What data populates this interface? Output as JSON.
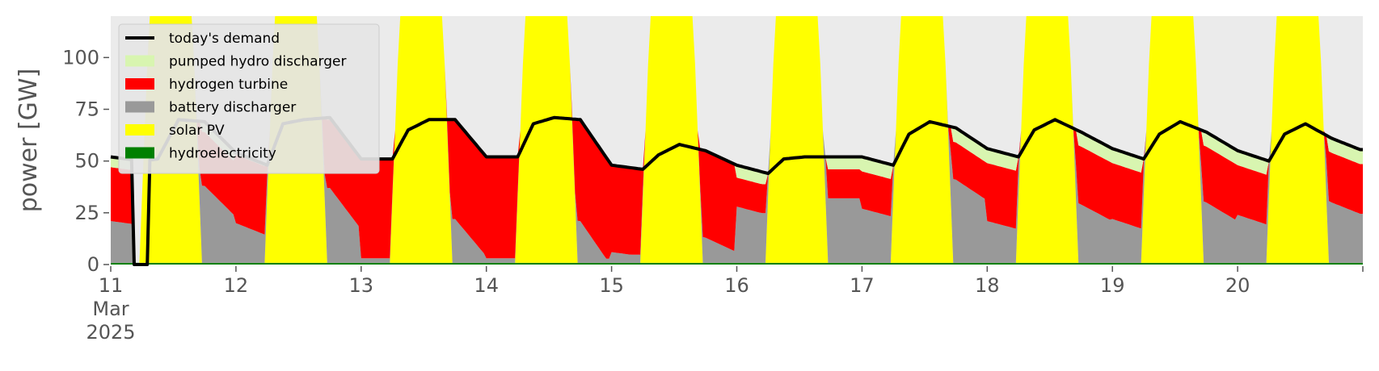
{
  "chart_data": {
    "type": "area",
    "ylabel": "power [GW]",
    "ylim": [
      0,
      120
    ],
    "xlim": [
      "2025-03-11T00:00",
      "2025-03-21T00:00"
    ],
    "y_ticks": [
      0,
      25,
      50,
      75,
      100
    ],
    "x_ticks": [
      {
        "date": "2025-03-11",
        "label": "11",
        "sublabel": "Mar",
        "year": "2025"
      },
      {
        "date": "2025-03-12",
        "label": "12"
      },
      {
        "date": "2025-03-13",
        "label": "13"
      },
      {
        "date": "2025-03-14",
        "label": "14"
      },
      {
        "date": "2025-03-15",
        "label": "15"
      },
      {
        "date": "2025-03-16",
        "label": "16"
      },
      {
        "date": "2025-03-17",
        "label": "17"
      },
      {
        "date": "2025-03-18",
        "label": "18"
      },
      {
        "date": "2025-03-19",
        "label": "19"
      },
      {
        "date": "2025-03-20",
        "label": "20"
      }
    ],
    "legend_position": "top-left",
    "grid": false,
    "background": "#ebebeb",
    "legend": [
      {
        "name": "today's demand",
        "color": "#000000",
        "kind": "line"
      },
      {
        "name": "pumped hydro discharger",
        "color": "#d8f5b0",
        "kind": "area"
      },
      {
        "name": "hydrogen turbine",
        "color": "#ff0000",
        "kind": "area"
      },
      {
        "name": "battery discharger",
        "color": "#999999",
        "kind": "area"
      },
      {
        "name": "solar PV",
        "color": "#ffff00",
        "kind": "area"
      },
      {
        "name": "hydroelectricity",
        "color": "#008000",
        "kind": "area"
      }
    ],
    "stack_order": [
      "hydroelectricity",
      "solar PV",
      "battery discharger",
      "hydrogen turbine",
      "pumped hydro discharger"
    ],
    "days": [
      {
        "date": "2025-03-11",
        "demand_day": [
          51,
          70,
          69
        ],
        "demand_night": [
          52,
          50
        ],
        "solar_peak": 160,
        "pumped": 5,
        "hydrogen": 26,
        "battery": 14
      },
      {
        "date": "2025-03-12",
        "demand_day": [
          68,
          70,
          71
        ],
        "demand_night": [
          54,
          48
        ],
        "solar_peak": 160,
        "pumped": 1,
        "hydrogen": 33,
        "battery": 11
      },
      {
        "date": "2025-03-13",
        "demand_day": [
          65,
          70,
          70
        ],
        "demand_night": [
          51,
          51
        ],
        "solar_peak": 160,
        "pumped": 0,
        "hydrogen": 48,
        "battery": 2
      },
      {
        "date": "2025-03-14",
        "demand_day": [
          68,
          71,
          70
        ],
        "demand_night": [
          52,
          52
        ],
        "solar_peak": 160,
        "pumped": 0,
        "hydrogen": 49,
        "battery": 2
      },
      {
        "date": "2025-03-15",
        "demand_day": [
          53,
          58,
          55
        ],
        "demand_night": [
          48,
          46
        ],
        "solar_peak": 160,
        "pumped": 0,
        "hydrogen": 42,
        "battery": 4
      },
      {
        "date": "2025-03-16",
        "demand_day": [
          51,
          52,
          52
        ],
        "demand_night": [
          48,
          44
        ],
        "solar_peak": 160,
        "pumped": 6,
        "hydrogen": 14,
        "battery": 24
      },
      {
        "date": "2025-03-17",
        "demand_day": [
          63,
          69,
          66
        ],
        "demand_night": [
          52,
          48
        ],
        "solar_peak": 160,
        "pumped": 7,
        "hydrogen": 18,
        "battery": 22
      },
      {
        "date": "2025-03-18",
        "demand_day": [
          65,
          70,
          64
        ],
        "demand_night": [
          56,
          52
        ],
        "solar_peak": 160,
        "pumped": 7,
        "hydrogen": 28,
        "battery": 16
      },
      {
        "date": "2025-03-19",
        "demand_day": [
          63,
          69,
          64
        ],
        "demand_night": [
          56,
          51
        ],
        "solar_peak": 160,
        "pumped": 7,
        "hydrogen": 27,
        "battery": 16
      },
      {
        "date": "2025-03-20",
        "demand_day": [
          63,
          68,
          61
        ],
        "demand_night": [
          55,
          50
        ],
        "solar_peak": 160,
        "pumped": 7,
        "hydrogen": 24,
        "battery": 18
      }
    ],
    "dip_2025_03_11": {
      "start_hour": 4.5,
      "end_hour": 7.0,
      "demand": 0
    }
  }
}
